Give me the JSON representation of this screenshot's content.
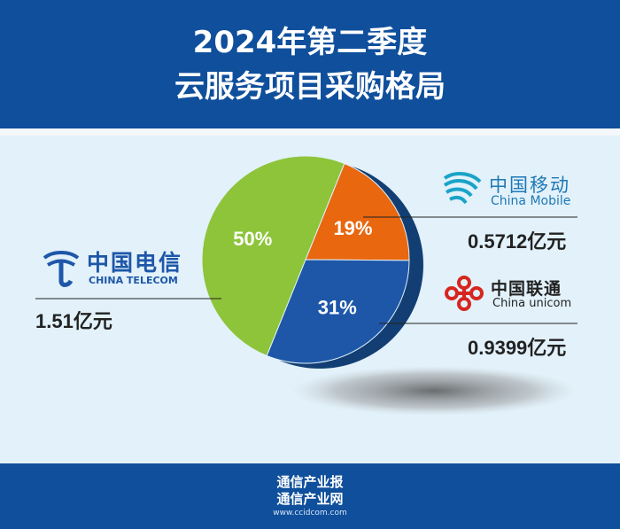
{
  "header": {
    "title_line1": "2024年第二季度",
    "title_line2": "云服务项目采购格局"
  },
  "chart_data": {
    "type": "pie",
    "categories": [
      "中国电信",
      "中国移动",
      "中国联通"
    ],
    "values": [
      50,
      19,
      31
    ],
    "percent_labels": [
      "50%",
      "19%",
      "31%"
    ],
    "amounts": [
      "1.51亿元",
      "0.5712亿元",
      "0.9399亿元"
    ],
    "colors": [
      "#8dc43a",
      "#e8670f",
      "#1e57a8"
    ]
  },
  "companies": {
    "telecom": {
      "cn": "中国电信",
      "en": "CHINA TELECOM"
    },
    "mobile": {
      "cn": "中国移动",
      "en": "China Mobile"
    },
    "unicom": {
      "cn": "中国联通",
      "en": "China unicom"
    }
  },
  "footer": {
    "line1": "通信产业报",
    "line2": "通信产业网",
    "url": "www.ccidcom.com"
  }
}
